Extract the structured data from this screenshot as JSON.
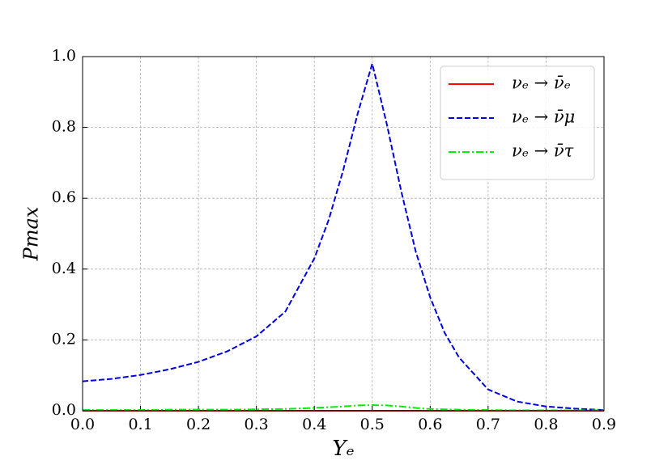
{
  "chart_data": {
    "type": "line",
    "xlabel": "Yₑ",
    "ylabel": "Pmax",
    "x": [
      0,
      0.05,
      0.1,
      0.15,
      0.2,
      0.25,
      0.3,
      0.35,
      0.4,
      0.425,
      0.45,
      0.475,
      0.5,
      0.525,
      0.55,
      0.575,
      0.6,
      0.625,
      0.65,
      0.7,
      0.75,
      0.8,
      0.85,
      0.9
    ],
    "series": [
      {
        "name": "νₑ → ν̄ₑ",
        "color": "#ff0000",
        "style": "solid",
        "values": [
          0,
          0,
          0,
          0,
          0,
          0,
          0,
          0,
          0,
          0,
          0,
          0,
          0,
          0,
          0,
          0,
          0,
          0,
          0,
          0,
          0,
          0,
          0,
          0
        ]
      },
      {
        "name": "νₑ → ν̄μ",
        "color": "#0000dd",
        "style": "dashed",
        "values": [
          0.083,
          0.09,
          0.101,
          0.117,
          0.138,
          0.168,
          0.21,
          0.28,
          0.43,
          0.54,
          0.68,
          0.84,
          0.98,
          0.81,
          0.62,
          0.45,
          0.32,
          0.22,
          0.15,
          0.06,
          0.026,
          0.012,
          0.006,
          0.002
        ]
      },
      {
        "name": "νₑ → ν̄τ",
        "color": "#00ee00",
        "style": "dashdot",
        "values": [
          0.002,
          0.002,
          0.002,
          0.003,
          0.003,
          0.003,
          0.004,
          0.005,
          0.008,
          0.01,
          0.012,
          0.015,
          0.016,
          0.015,
          0.012,
          0.008,
          0.005,
          0.004,
          0.003,
          0.002,
          0.001,
          0.001,
          0.001,
          0.001
        ]
      }
    ],
    "xlim": [
      0,
      0.9
    ],
    "xticks": [
      {
        "value": 0,
        "label": "0.0"
      },
      0.1,
      0.2,
      0.3,
      0.4,
      0.5,
      0.6,
      0.7,
      0.8,
      0.9
    ],
    "ylim": [
      0,
      1
    ],
    "yticks": [
      {
        "value": 0,
        "label": "0.0"
      },
      0.2,
      0.4,
      0.6,
      0.8,
      {
        "value": 1,
        "label": "1.0"
      }
    ],
    "grid": true,
    "legend": "upper right"
  }
}
